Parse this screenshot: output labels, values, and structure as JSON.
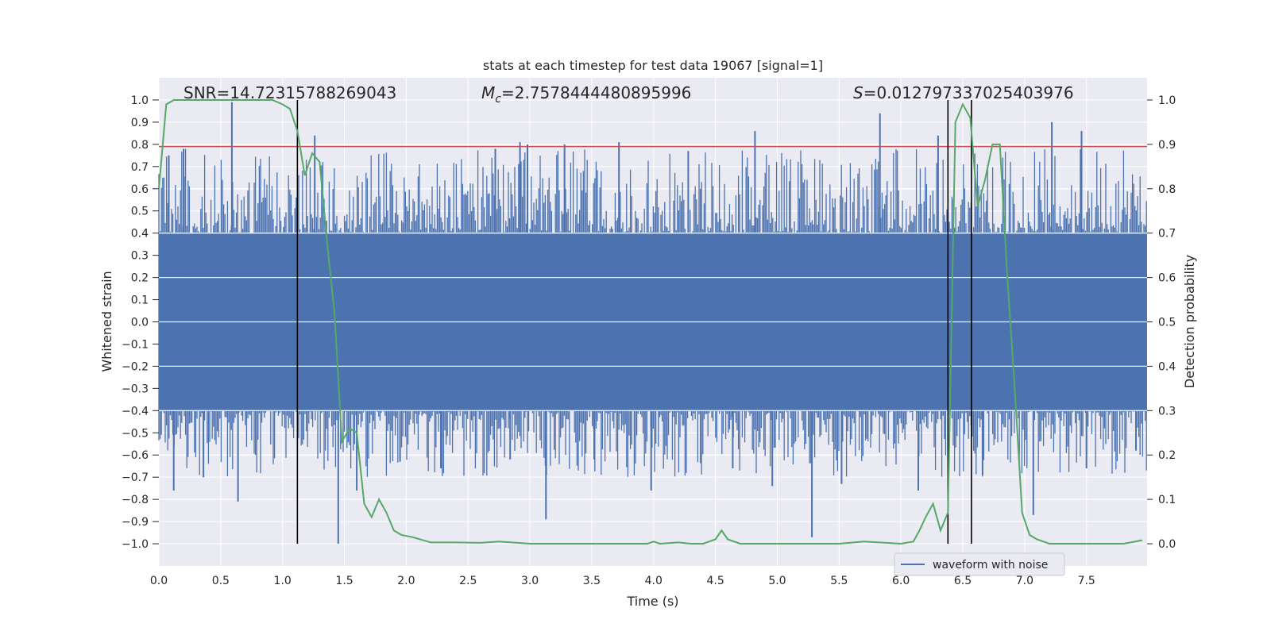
{
  "chart_data": {
    "type": "line",
    "title": "stats at each timestep for test data 19067 [signal=1]",
    "xlabel": "Time (s)",
    "ylabel_left": "Whitened strain",
    "ylabel_right": "Detection probability",
    "xlim": [
      0.0,
      7.99
    ],
    "ylim_left": [
      -1.1,
      1.1
    ],
    "ylim_right": [
      -0.05,
      1.05
    ],
    "x_ticks": [
      "0.0",
      "0.5",
      "1.0",
      "1.5",
      "2.0",
      "2.5",
      "3.0",
      "3.5",
      "4.0",
      "4.5",
      "5.0",
      "5.5",
      "6.0",
      "6.5",
      "7.0",
      "7.5"
    ],
    "y_left_ticks": [
      "1.0",
      "0.9",
      "0.8",
      "0.7",
      "0.6",
      "0.5",
      "0.4",
      "0.3",
      "0.2",
      "0.1",
      "0.0",
      "−0.1",
      "−0.2",
      "−0.3",
      "−0.4",
      "−0.5",
      "−0.6",
      "−0.7",
      "−0.8",
      "−0.9",
      "−1.0"
    ],
    "y_right_ticks": [
      "1.0",
      "0.9",
      "0.8",
      "0.7",
      "0.6",
      "0.5",
      "0.4",
      "0.3",
      "0.2",
      "0.1",
      "0.0"
    ],
    "grid": true,
    "background": "#eaeaf2",
    "annotations": {
      "snr": "SNR=14.72315788269043",
      "mc_symbol": "M",
      "mc_sub": "c",
      "mc_value": "=2.7578444480895996",
      "s_symbol": "S",
      "s_value": "=0.012797337025403976"
    },
    "legend": {
      "label": "waveform with noise",
      "position": "lower-right"
    },
    "threshold_left": 0.79,
    "vlines_x": [
      1.12,
      6.38,
      6.57
    ],
    "series": [
      {
        "name": "waveform with noise",
        "color": "#4c72b0",
        "spikes": [
          [
            0.59,
            0.99
          ],
          [
            0.2,
            0.78
          ],
          [
            0.08,
            0.75
          ],
          [
            1.26,
            0.84
          ],
          [
            2.92,
            0.81
          ],
          [
            3.28,
            0.8
          ],
          [
            4.82,
            0.86
          ],
          [
            5.83,
            0.94
          ],
          [
            6.3,
            0.84
          ],
          [
            7.22,
            0.9
          ],
          [
            7.46,
            0.86
          ],
          [
            2.72,
            0.78
          ],
          [
            3.72,
            0.81
          ],
          [
            4.28,
            0.77
          ],
          [
            2.98,
            0.8
          ],
          [
            1.45,
            -1.0
          ],
          [
            5.28,
            -0.97
          ],
          [
            3.13,
            -0.89
          ],
          [
            7.07,
            -0.87
          ],
          [
            0.64,
            -0.81
          ],
          [
            0.12,
            -0.76
          ],
          [
            1.6,
            -0.76
          ],
          [
            3.98,
            -0.76
          ],
          [
            4.96,
            -0.74
          ],
          [
            6.14,
            -0.76
          ],
          [
            0.36,
            -0.7
          ],
          [
            5.52,
            -0.73
          ],
          [
            6.66,
            -0.69
          ],
          [
            7.5,
            -0.66
          ],
          [
            2.84,
            -0.62
          ],
          [
            2.28,
            -0.66
          ],
          [
            4.64,
            -0.66
          ],
          [
            1.95,
            -0.63
          ],
          [
            3.52,
            -0.62
          ],
          [
            7.9,
            -0.58
          ],
          [
            2.98,
            -0.14
          ]
        ]
      },
      {
        "name": "detection probability",
        "color": "#55a868",
        "x": [
          0.0,
          0.06,
          0.12,
          0.18,
          0.25,
          0.35,
          0.5,
          0.65,
          0.8,
          0.92,
          1.0,
          1.06,
          1.12,
          1.18,
          1.24,
          1.3,
          1.36,
          1.42,
          1.48,
          1.54,
          1.6,
          1.66,
          1.72,
          1.78,
          1.84,
          1.9,
          1.96,
          2.05,
          2.2,
          2.4,
          2.6,
          2.75,
          2.9,
          3.0,
          3.2,
          3.5,
          3.8,
          3.95,
          4.0,
          4.05,
          4.2,
          4.3,
          4.4,
          4.5,
          4.55,
          4.6,
          4.7,
          4.8,
          5.0,
          5.3,
          5.5,
          5.7,
          6.0,
          6.1,
          6.15,
          6.2,
          6.26,
          6.32,
          6.38,
          6.44,
          6.5,
          6.56,
          6.62,
          6.68,
          6.74,
          6.8,
          6.86,
          6.92,
          6.98,
          7.04,
          7.1,
          7.2,
          7.4,
          7.6,
          7.8,
          7.95
        ],
        "y": [
          0.8,
          0.99,
          1.0,
          1.0,
          1.0,
          1.0,
          1.0,
          1.0,
          1.0,
          1.0,
          0.99,
          0.98,
          0.93,
          0.83,
          0.88,
          0.86,
          0.68,
          0.52,
          0.23,
          0.26,
          0.25,
          0.09,
          0.06,
          0.1,
          0.07,
          0.03,
          0.02,
          0.015,
          0.003,
          0.003,
          0.002,
          0.005,
          0.002,
          0.0,
          0.0,
          0.0,
          0.0,
          0.0,
          0.005,
          0.0,
          0.003,
          0.0,
          0.0,
          0.01,
          0.03,
          0.01,
          0.0,
          0.0,
          0.0,
          0.0,
          0.0,
          0.005,
          0.0,
          0.005,
          0.03,
          0.06,
          0.09,
          0.03,
          0.07,
          0.95,
          0.99,
          0.96,
          0.76,
          0.82,
          0.9,
          0.9,
          0.6,
          0.35,
          0.07,
          0.02,
          0.01,
          0.0,
          0.0,
          0.0,
          0.0,
          0.008
        ]
      }
    ]
  }
}
